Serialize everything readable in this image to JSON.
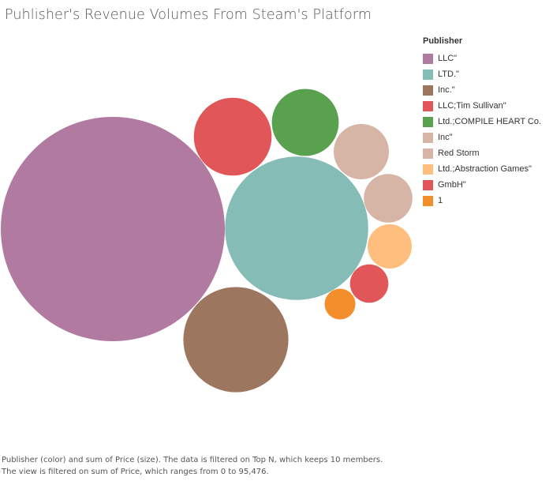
{
  "chart_data": {
    "type": "packed-bubble",
    "title": "Puhlisher's Revenue Volumes From Steam's Platform",
    "legend_title": "Publisher",
    "legend_position": "right",
    "series": [
      {
        "name": "LLC\"",
        "value": 95476,
        "color": "#b07aa1"
      },
      {
        "name": "LTD.\"",
        "value": 39000,
        "color": "#86bcb6"
      },
      {
        "name": "Inc.\"",
        "value": 21000,
        "color": "#9d7660"
      },
      {
        "name": "LLC;Tim Sullivan\"",
        "value": 11500,
        "color": "#e15759"
      },
      {
        "name": "Ltd.;COMPILE HEART Co.",
        "value": 8500,
        "color": "#59a14f"
      },
      {
        "name": "Inc\"",
        "value": 5800,
        "color": "#d7b5a6"
      },
      {
        "name": "Red Storm",
        "value": 4500,
        "color": "#d7b5a6"
      },
      {
        "name": "Ltd.;Abstraction Games\"",
        "value": 3700,
        "color": "#ffbe7d"
      },
      {
        "name": "GmbH\"",
        "value": 2800,
        "color": "#e15759"
      },
      {
        "name": "1",
        "value": 1800,
        "color": "#f28e2b"
      }
    ]
  },
  "caption": "Publisher (color) and sum of Price (size). The data is filtered on Top N, which keeps 10 members. The view is filtered on sum of Price, which ranges from 0 to 95,476."
}
